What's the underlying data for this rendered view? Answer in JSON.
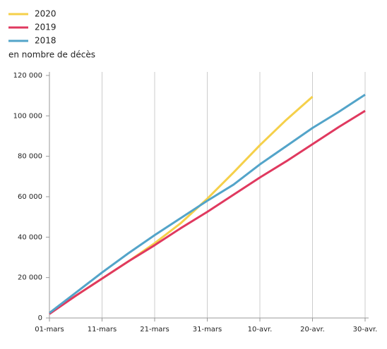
{
  "chart_data": {
    "type": "line",
    "y_label": "en nombre de décès",
    "categories": [
      "01-mars",
      null,
      "11-mars",
      null,
      "21-mars",
      null,
      "31-mars",
      null,
      "10-avr.",
      null,
      "20-avr.",
      null,
      "30-avr."
    ],
    "series": [
      {
        "name": "2020",
        "color": "#f5d04a",
        "values": [
          2500,
          11000,
          19500,
          28000,
          37000,
          47000,
          59000,
          72000,
          85500,
          98000,
          109500,
          null,
          null
        ]
      },
      {
        "name": "2019",
        "color": "#e0395f",
        "values": [
          2000,
          11000,
          19500,
          28000,
          36000,
          44500,
          52500,
          61000,
          69500,
          77500,
          86000,
          94500,
          102500
        ]
      },
      {
        "name": "2018",
        "color": "#53a4c9",
        "values": [
          2500,
          12500,
          22500,
          32000,
          41000,
          49500,
          58000,
          66000,
          76000,
          85000,
          94000,
          102000,
          110500
        ]
      }
    ],
    "ylim": [
      0,
      120000
    ],
    "yticks": [
      0,
      {
        "value": 20000,
        "label": "20 000"
      },
      {
        "value": 40000,
        "label": "40 000"
      },
      {
        "value": 60000,
        "label": "60 000"
      },
      {
        "value": 80000,
        "label": "80 000"
      },
      {
        "value": 100000,
        "label": "100 000"
      },
      {
        "value": 120000,
        "label": "120 000"
      }
    ],
    "grid": true,
    "legend": "top-left"
  }
}
